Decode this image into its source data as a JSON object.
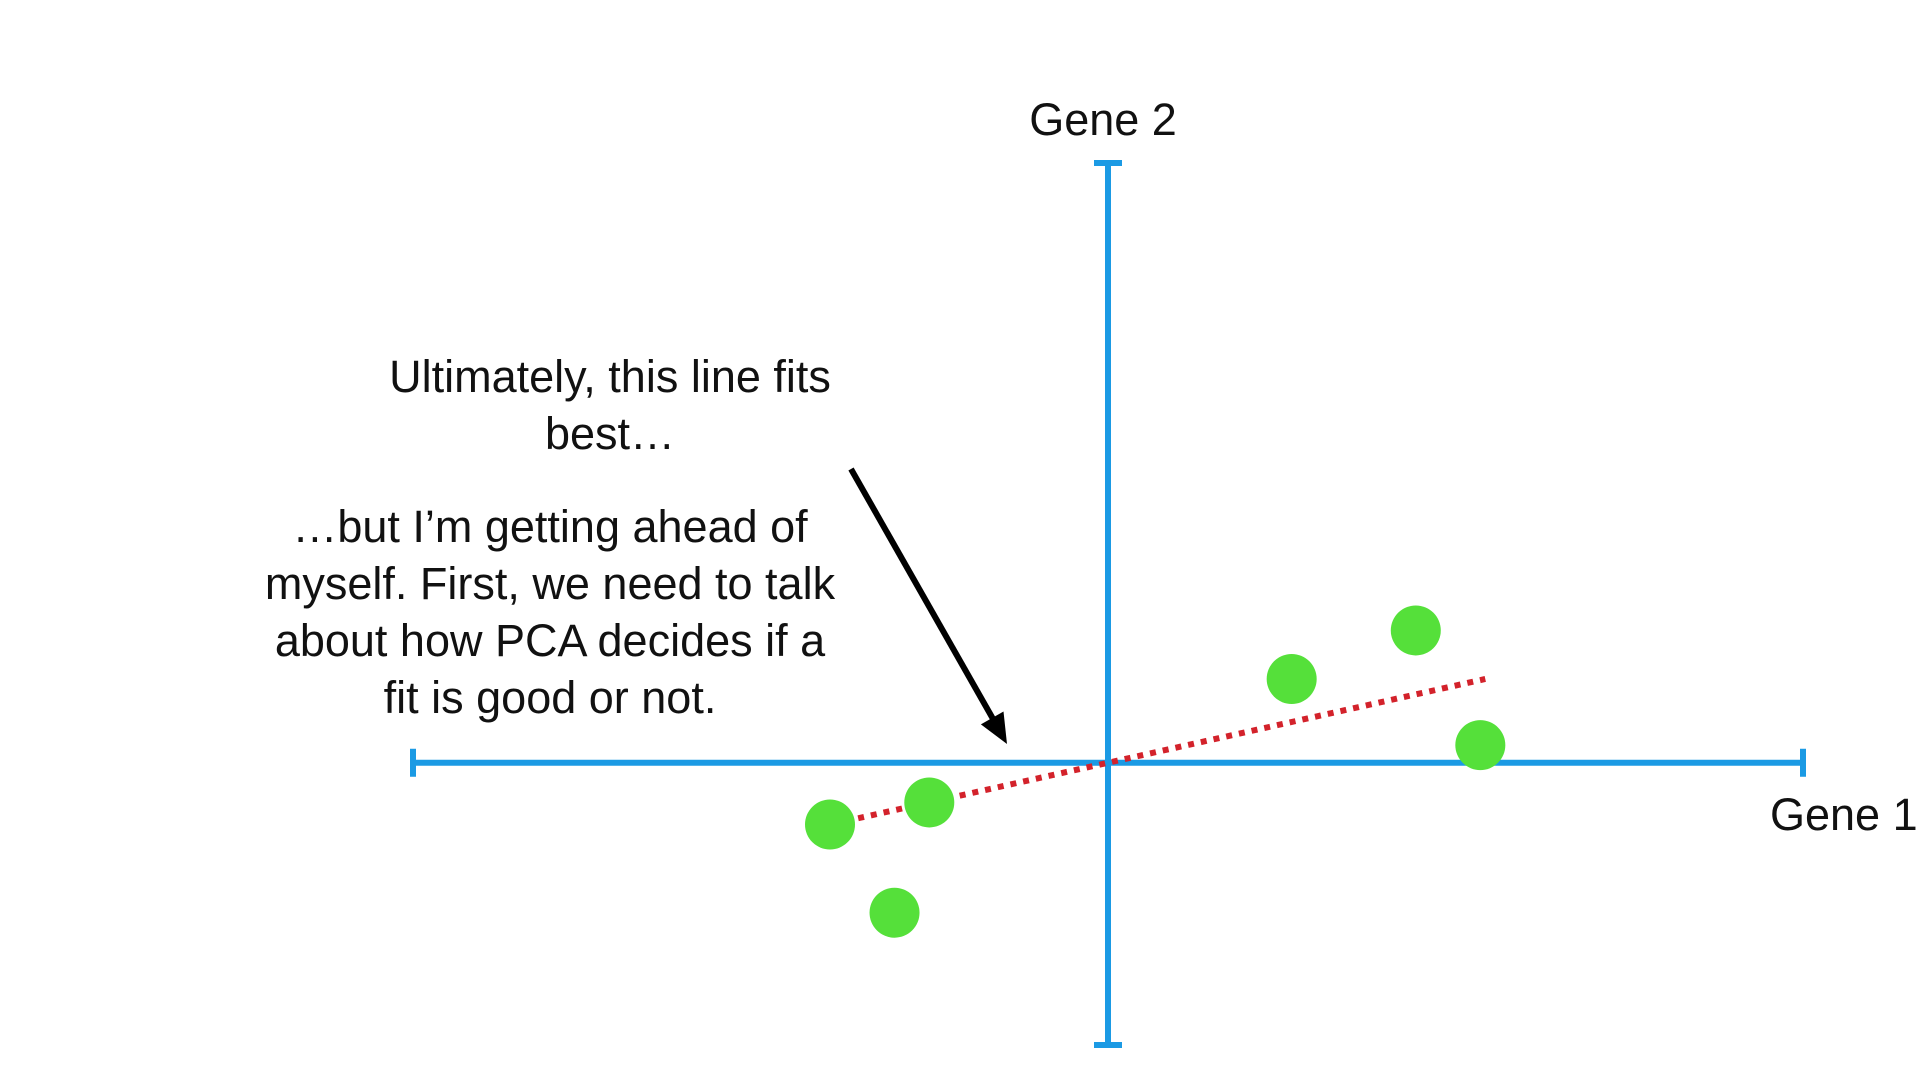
{
  "chart_data": {
    "type": "scatter",
    "x_axis_label": "Gene 1",
    "y_axis_label": "Gene 2",
    "points": [
      {
        "x": -2.8,
        "y": -0.7
      },
      {
        "x": -1.8,
        "y": -0.45
      },
      {
        "x": -2.15,
        "y": -1.7
      },
      {
        "x": 1.85,
        "y": 0.95
      },
      {
        "x": 3.1,
        "y": 1.5
      },
      {
        "x": 3.75,
        "y": 0.2
      }
    ],
    "xlim": [
      -7,
      7
    ],
    "ylim": [
      -3.2,
      6.8
    ],
    "fit_line": {
      "x_start": -2.9,
      "x_end": 3.8,
      "slope": 0.25
    },
    "colors": {
      "axis": "#1b9ae4",
      "points": "#55e03a",
      "fit_line": "#d3222b",
      "arrow": "#000000"
    }
  },
  "annotations": {
    "top_line1": "Ultimately, this line fits",
    "top_line2": "best…",
    "bottom_line1": "…but I’m getting ahead of",
    "bottom_line2": "myself. First, we need to talk",
    "bottom_line3": "about how PCA decides if a",
    "bottom_line4": "fit is good or not."
  }
}
